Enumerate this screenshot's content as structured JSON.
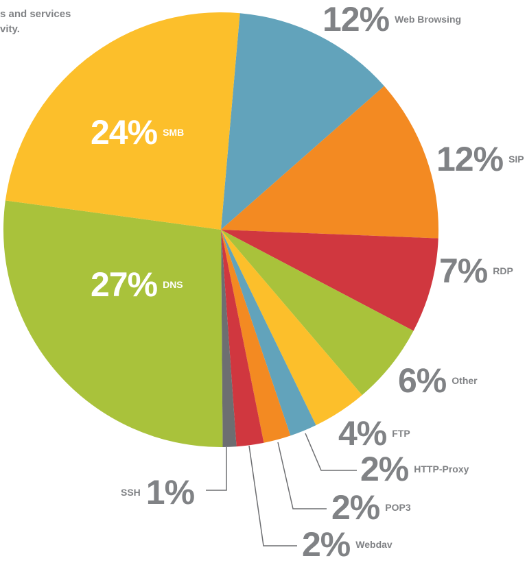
{
  "chart_data": {
    "type": "pie",
    "annotations": [
      "s and services",
      "vity."
    ],
    "categories": [
      "Web Browsing",
      "SIP",
      "RDP",
      "Other",
      "FTP",
      "HTTP-Proxy",
      "POP3",
      "Webdav",
      "SSH",
      "DNS",
      "SMB"
    ],
    "values": [
      12,
      12,
      7,
      6,
      4,
      2,
      2,
      2,
      1,
      27,
      24
    ],
    "value_labels": [
      "12%",
      "12%",
      "7%",
      "6%",
      "4%",
      "2%",
      "2%",
      "2%",
      "1%",
      "27%",
      "24%"
    ],
    "colors": [
      "#62a3bb",
      "#f38a22",
      "#d0373f",
      "#a9c23b",
      "#fcbf2b",
      "#62a3bb",
      "#f38a22",
      "#d0373f",
      "#6d6e71",
      "#a9c23b",
      "#fcbf2b"
    ]
  }
}
